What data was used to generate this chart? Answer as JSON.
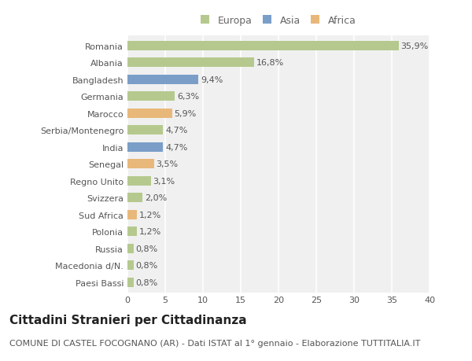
{
  "countries": [
    "Romania",
    "Albania",
    "Bangladesh",
    "Germania",
    "Marocco",
    "Serbia/Montenegro",
    "India",
    "Senegal",
    "Regno Unito",
    "Svizzera",
    "Sud Africa",
    "Polonia",
    "Russia",
    "Macedonia d/N.",
    "Paesi Bassi"
  ],
  "values": [
    35.9,
    16.8,
    9.4,
    6.3,
    5.9,
    4.7,
    4.7,
    3.5,
    3.1,
    2.0,
    1.2,
    1.2,
    0.8,
    0.8,
    0.8
  ],
  "labels": [
    "35,9%",
    "16,8%",
    "9,4%",
    "6,3%",
    "5,9%",
    "4,7%",
    "4,7%",
    "3,5%",
    "3,1%",
    "2,0%",
    "1,2%",
    "1,2%",
    "0,8%",
    "0,8%",
    "0,8%"
  ],
  "continents": [
    "Europa",
    "Europa",
    "Asia",
    "Europa",
    "Africa",
    "Europa",
    "Asia",
    "Africa",
    "Europa",
    "Europa",
    "Africa",
    "Europa",
    "Europa",
    "Europa",
    "Europa"
  ],
  "colors": {
    "Europa": "#b5c98e",
    "Asia": "#7a9ec8",
    "Africa": "#e8b87a"
  },
  "legend_labels": [
    "Europa",
    "Asia",
    "Africa"
  ],
  "title": "Cittadini Stranieri per Cittadinanza",
  "subtitle": "COMUNE DI CASTEL FOCOGNANO (AR) - Dati ISTAT al 1° gennaio - Elaborazione TUTTITALIA.IT",
  "xlim": [
    0,
    40
  ],
  "xticks": [
    0,
    5,
    10,
    15,
    20,
    25,
    30,
    35,
    40
  ],
  "fig_bg": "#ffffff",
  "plot_bg": "#f0f0f0",
  "grid_color": "#ffffff",
  "bar_height": 0.55,
  "title_fontsize": 11,
  "subtitle_fontsize": 8,
  "label_fontsize": 8,
  "tick_fontsize": 8,
  "legend_fontsize": 9
}
